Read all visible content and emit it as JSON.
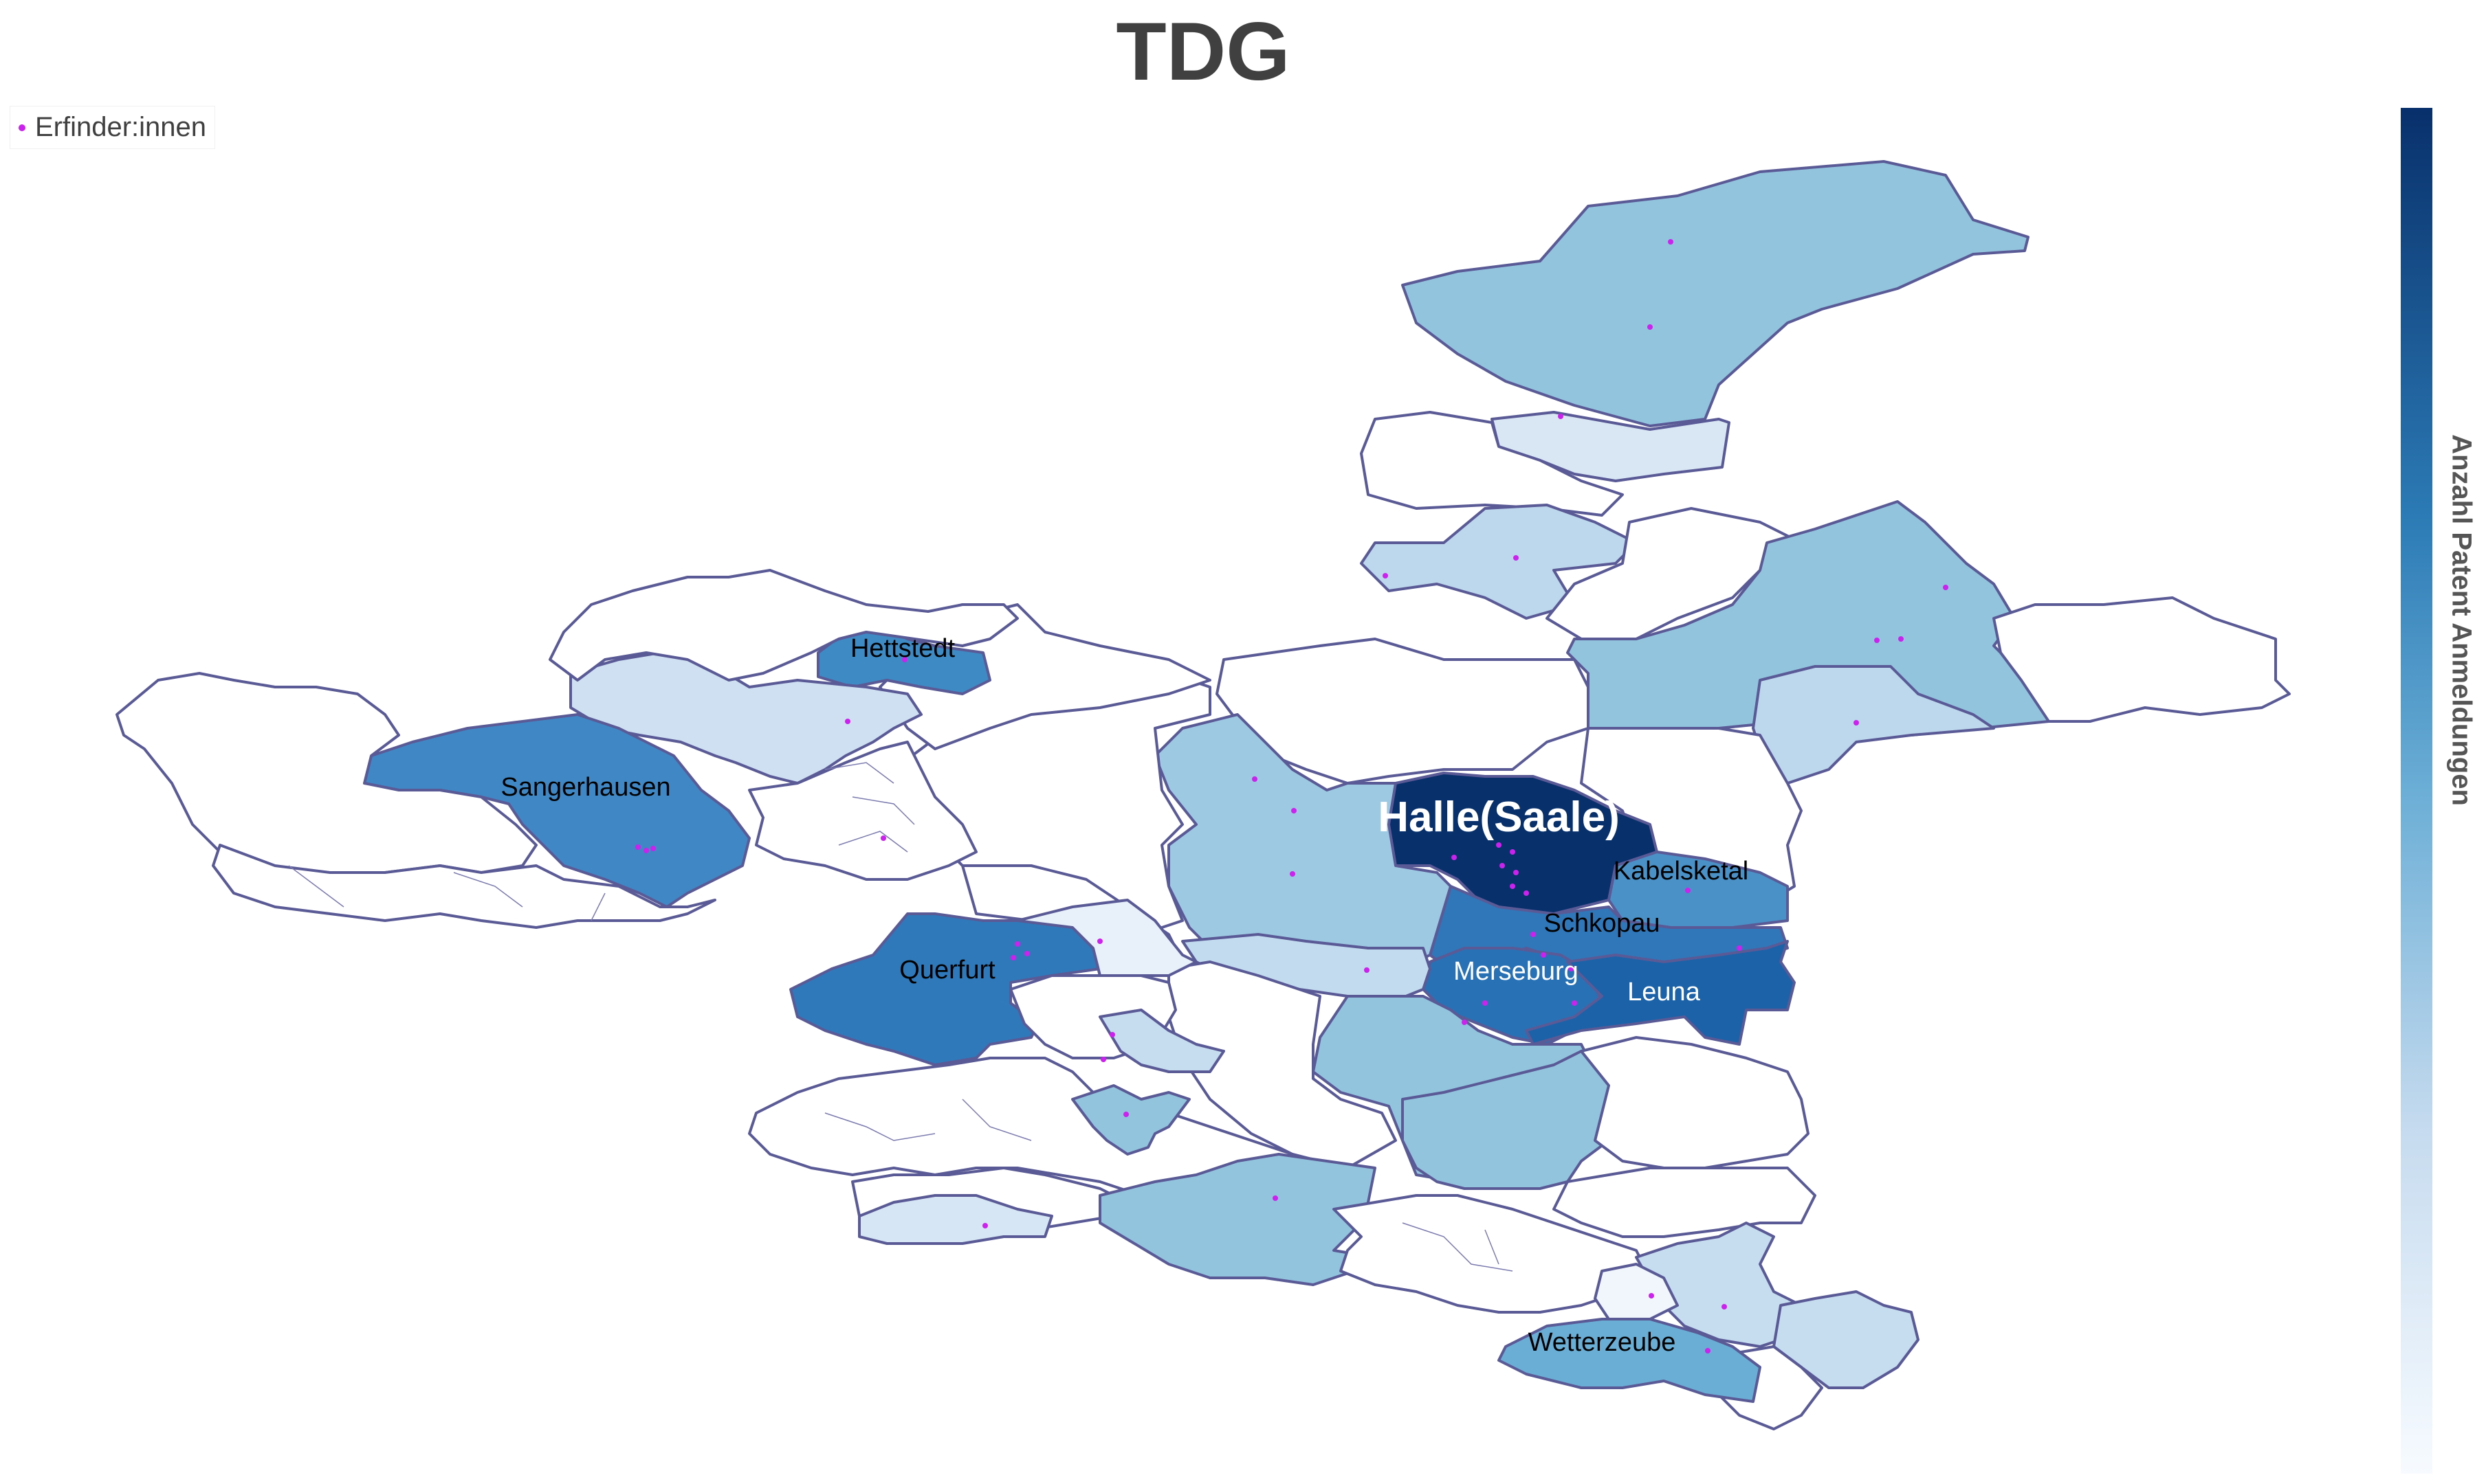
{
  "title": "TDG",
  "legend": {
    "label": "Erfinder:innen",
    "marker_color": "#cc22ee"
  },
  "colorbar": {
    "title": "Anzahl Patent Anmeldungen",
    "colors": [
      "#08306b",
      "#2c7bb6",
      "#6baed6",
      "#c6dbef",
      "#f7fbff"
    ]
  },
  "city_labels": [
    {
      "name": "Halle(Saale)"
    },
    {
      "name": "Kabelsketal"
    },
    {
      "name": "Schkopau"
    },
    {
      "name": "Merseburg"
    },
    {
      "name": "Leuna"
    },
    {
      "name": "Querfurt"
    },
    {
      "name": "Sangerhausen"
    },
    {
      "name": "Hettstedt"
    },
    {
      "name": "Wetterzeube"
    }
  ]
}
